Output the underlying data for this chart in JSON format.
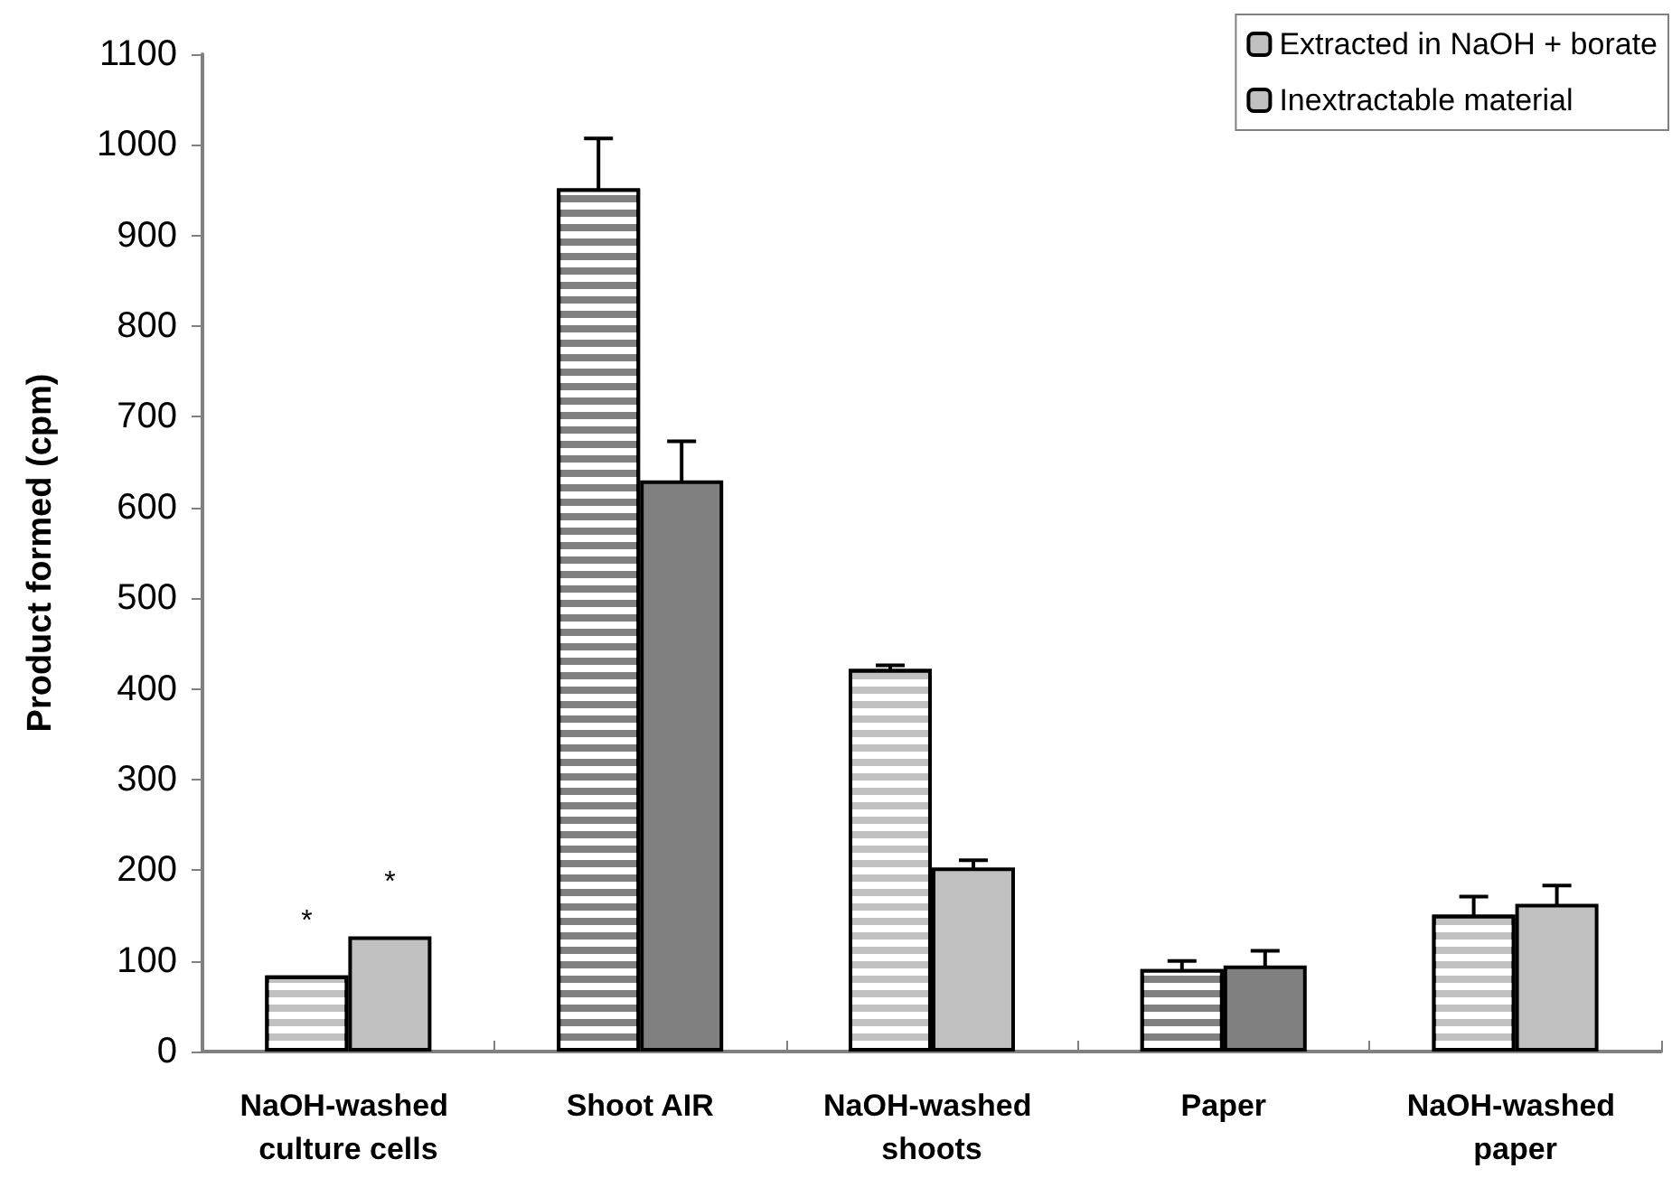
{
  "chart_data": {
    "type": "bar",
    "ylabel": "Product formed (cpm)",
    "categories": [
      "NaOH-washed culture cells",
      "Shoot AIR",
      "NaOH-washed shoots",
      "Paper",
      "NaOH-washed paper"
    ],
    "series": [
      {
        "name": "Extracted in NaOH + borate",
        "colors": [
          "#c0c0c0",
          "#808080",
          "#c0c0c0",
          "#808080",
          "#c0c0c0"
        ],
        "values": [
          84,
          952,
          422,
          91,
          151
        ],
        "errors": [
          null,
          55,
          4,
          9,
          20
        ],
        "value_labels": [
          "*",
          null,
          null,
          null,
          null
        ]
      },
      {
        "name": "Inextractable material",
        "colors": [
          "#c0c0c0",
          "#808080",
          "#c0c0c0",
          "#808080",
          "#c0c0c0"
        ],
        "values": [
          127,
          630,
          203,
          95,
          163
        ],
        "errors": [
          null,
          43,
          8,
          16,
          20
        ],
        "value_labels": [
          "*",
          null,
          null,
          null,
          null
        ]
      }
    ],
    "ylim": [
      0,
      1100
    ],
    "yticks": [
      0,
      100,
      200,
      300,
      400,
      500,
      600,
      700,
      800,
      900,
      1000,
      1100
    ],
    "grid": false,
    "legend": "top right"
  }
}
